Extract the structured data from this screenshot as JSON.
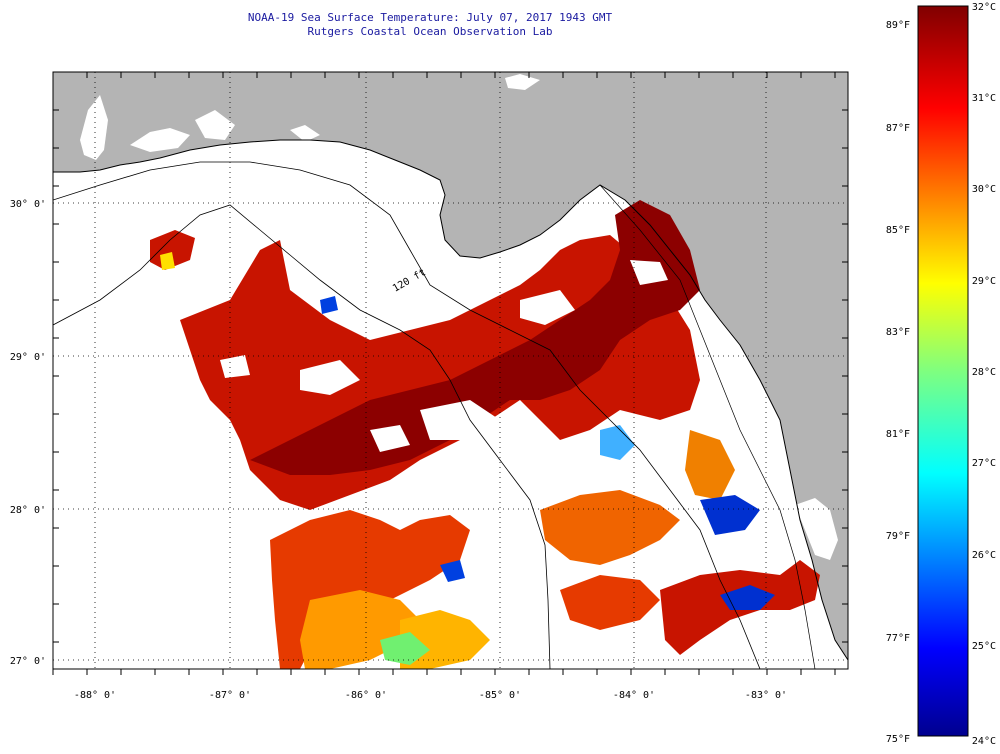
{
  "header": {
    "title": "NOAA-19 Sea Surface Temperature:  July 07, 2017 1943 GMT",
    "subtitle": "Rutgers Coastal Ocean Observation Lab"
  },
  "map": {
    "lon_ticks": [
      "-88° 0'",
      "-87° 0'",
      "-86° 0'",
      "-85° 0'",
      "-84° 0'",
      "-83° 0'"
    ],
    "lat_ticks": [
      "30° 0'",
      "29° 0'",
      "28° 0'",
      "27° 0'"
    ],
    "isobath_label": "120 ft",
    "land_color": "#b4b4b4",
    "nodata_color": "#ffffff"
  },
  "colorbar": {
    "f_labels": [
      "89°F",
      "87°F",
      "85°F",
      "83°F",
      "81°F",
      "79°F",
      "77°F",
      "75°F"
    ],
    "c_labels": [
      "32°C",
      "31°C",
      "30°C",
      "29°C",
      "28°C",
      "27°C",
      "26°C",
      "25°C",
      "24°C"
    ],
    "min_c": 24,
    "max_c": 32
  }
}
